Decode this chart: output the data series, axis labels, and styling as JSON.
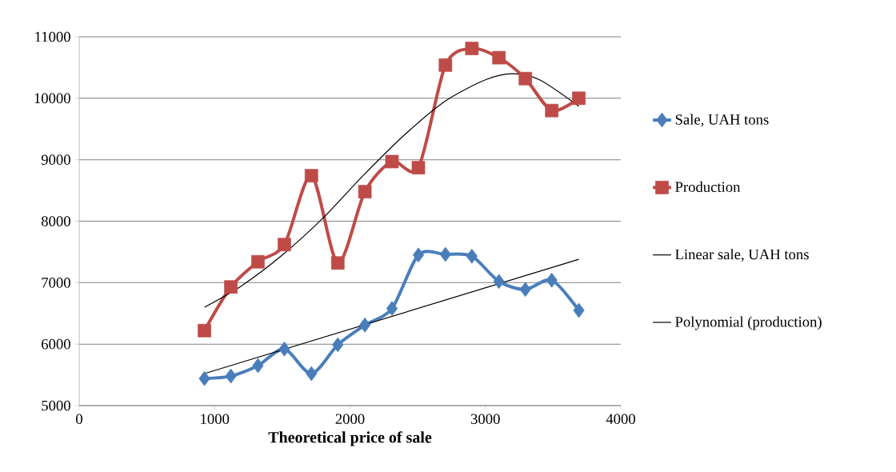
{
  "chart_data": {
    "type": "line",
    "xlabel": "Theoretical price of sale",
    "series": [
      {
        "name": "Sale, UAH tons",
        "color": "#4a7ebb",
        "marker": "diamond",
        "x": [
          925,
          1120,
          1320,
          1515,
          1715,
          1910,
          2110,
          2310,
          2505,
          2705,
          2900,
          3100,
          3295,
          3490,
          3690
        ],
        "values": [
          5440,
          5480,
          5650,
          5920,
          5520,
          5990,
          6310,
          6580,
          7450,
          7460,
          7430,
          7020,
          6890,
          7040,
          6550
        ]
      },
      {
        "name": "Production",
        "color": "#be4b48",
        "marker": "square",
        "x": [
          925,
          1120,
          1320,
          1515,
          1715,
          1910,
          2110,
          2310,
          2505,
          2705,
          2900,
          3100,
          3295,
          3490,
          3690
        ],
        "values": [
          6220,
          6930,
          7340,
          7620,
          8740,
          7320,
          8480,
          8970,
          8870,
          10540,
          10810,
          10660,
          10320,
          9800,
          10000
        ]
      },
      {
        "name": "Linear sale, UAH tons",
        "color": "#000000",
        "marker": "none",
        "x": [
          925,
          3690
        ],
        "values": [
          5520,
          7380
        ]
      },
      {
        "name": "Polynomial (production)",
        "color": "#000000",
        "marker": "none",
        "x": [
          925,
          1200,
          1500,
          1800,
          2100,
          2400,
          2700,
          3000,
          3200,
          3400,
          3690
        ],
        "values": [
          6600,
          6950,
          7450,
          8050,
          8750,
          9400,
          9950,
          10300,
          10400,
          10300,
          9870
        ]
      }
    ],
    "xlim": [
      0,
      4000
    ],
    "xticks": [
      0,
      1000,
      2000,
      3000,
      4000
    ],
    "ylim": [
      5000,
      11000
    ],
    "yticks": [
      5000,
      6000,
      7000,
      8000,
      9000,
      10000,
      11000
    ],
    "grid": "y",
    "legend": "right"
  }
}
